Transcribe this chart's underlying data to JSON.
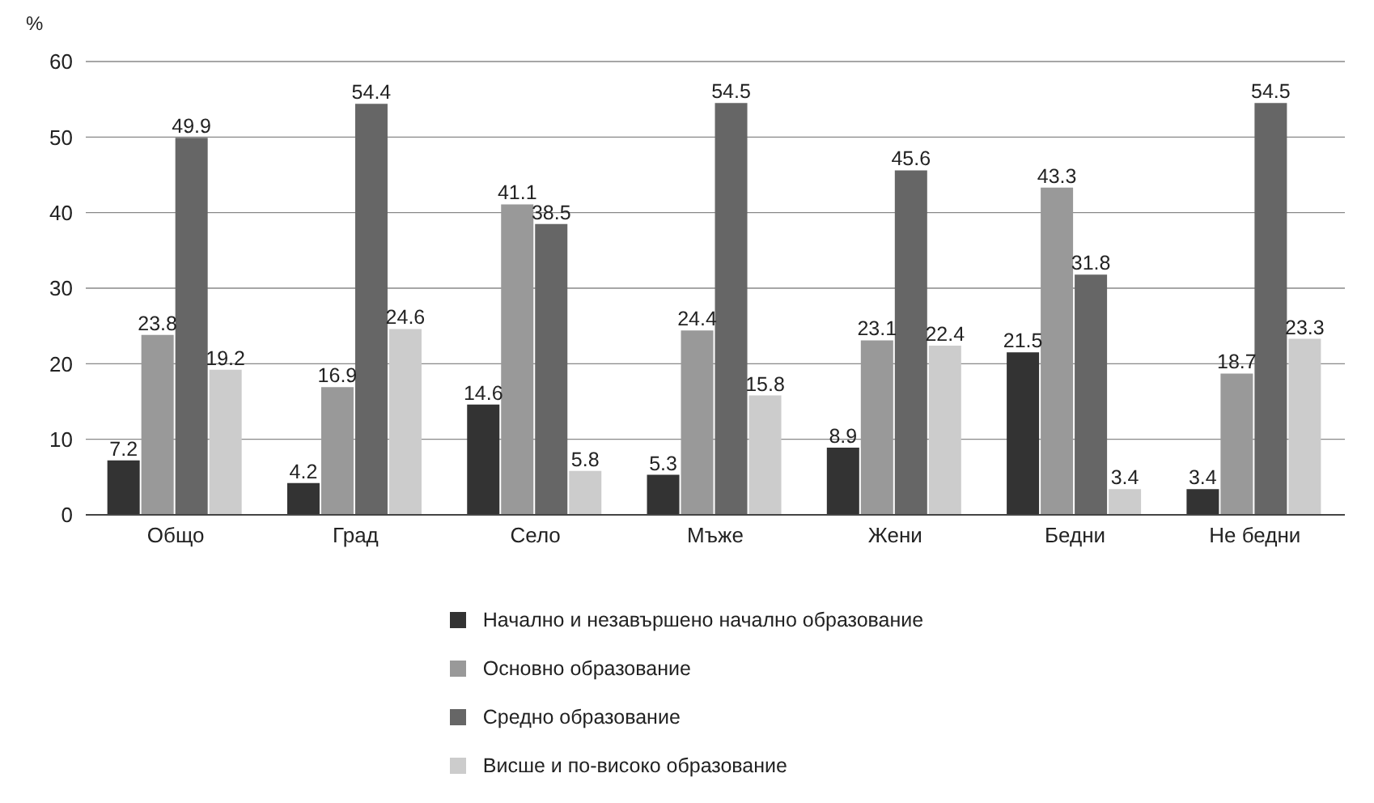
{
  "chart_data": {
    "type": "bar",
    "ylabel": "%",
    "categories": [
      "Общо",
      "Град",
      "Село",
      "Мъже",
      "Жени",
      "Бедни",
      "Не бедни"
    ],
    "series": [
      {
        "name": "Начално и незавършено начално образование",
        "color": "#333333",
        "values": [
          7.2,
          4.2,
          14.6,
          5.3,
          8.9,
          21.5,
          3.4
        ]
      },
      {
        "name": "Основно  образование",
        "color": "#999999",
        "values": [
          23.8,
          16.9,
          41.1,
          24.4,
          23.1,
          43.3,
          18.7
        ]
      },
      {
        "name": "Средно образование",
        "color": "#666666",
        "values": [
          49.9,
          54.4,
          38.5,
          54.5,
          45.6,
          31.8,
          54.5
        ]
      },
      {
        "name": "Висше и по-високо образование",
        "color": "#cccccc",
        "values": [
          19.2,
          24.6,
          5.8,
          15.8,
          22.4,
          3.4,
          23.3
        ]
      }
    ],
    "ylim": [
      0,
      60
    ],
    "yticks": [
      0,
      10,
      20,
      30,
      40,
      50,
      60
    ],
    "grid": "y",
    "legend": "bottom",
    "data_labels": true
  }
}
